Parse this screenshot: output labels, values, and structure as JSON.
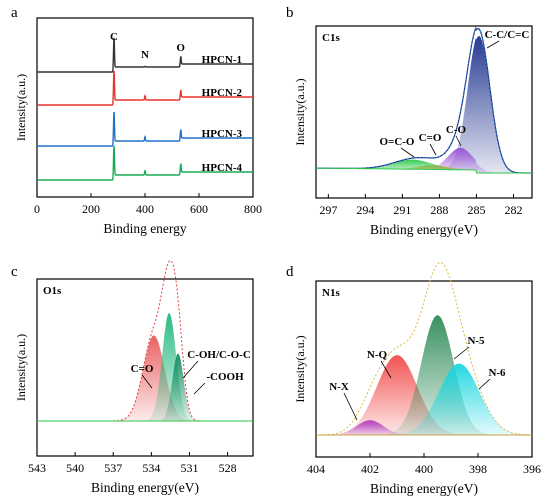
{
  "chart_data": [
    {
      "panel": "a",
      "type": "line",
      "xlabel": "Binding energy",
      "ylabel": "Intensity(a.u.)",
      "xlim": [
        0,
        800
      ],
      "xticks": [
        "0",
        "200",
        "400",
        "600",
        "800"
      ],
      "peak_labels": [
        {
          "text": "C",
          "x": 285
        },
        {
          "text": "N",
          "x": 400
        },
        {
          "text": "O",
          "x": 532
        }
      ],
      "series": [
        {
          "name": "HPCN-1",
          "color": "#333333",
          "peaks": {
            "C": 1.0,
            "N": 0.05,
            "O": 0.55
          }
        },
        {
          "name": "HPCN-2",
          "color": "#e8322d",
          "peaks": {
            "C": 1.0,
            "N": 0.35,
            "O": 0.5
          }
        },
        {
          "name": "HPCN-3",
          "color": "#1f72c9",
          "peaks": {
            "C": 1.0,
            "N": 0.35,
            "O": 0.6
          }
        },
        {
          "name": "HPCN-4",
          "color": "#1aaa55",
          "peaks": {
            "C": 1.0,
            "N": 0.35,
            "O": 0.6
          }
        }
      ]
    },
    {
      "panel": "b",
      "type": "area",
      "title": "C1s",
      "xlabel": "Binding energy(eV)",
      "ylabel": "Intensity(a.u.)",
      "xlim": [
        298,
        280.5
      ],
      "reversed_x": true,
      "xticks": [
        "297",
        "294",
        "291",
        "288",
        "285",
        "282"
      ],
      "components": [
        {
          "name": "C-C/C=C",
          "center": 284.8,
          "height": 1.0,
          "width": 0.9,
          "color": "#1c2f8c"
        },
        {
          "name": "C-O",
          "center": 286.3,
          "height": 0.16,
          "width": 1.0,
          "color": "#9a4fd6"
        },
        {
          "name": "C=O",
          "center": 288.5,
          "height": 0.03,
          "width": 1.2,
          "color": "#e89a3c"
        },
        {
          "name": "O=C-O",
          "center": 290.2,
          "height": 0.07,
          "width": 1.6,
          "color": "#2ec94a"
        }
      ]
    },
    {
      "panel": "c",
      "type": "area",
      "title": "O1s",
      "xlabel": "Binding energy(eV)",
      "ylabel": "Intensity(a.u.)",
      "xlim": [
        543,
        526
      ],
      "reversed_x": true,
      "xticks": [
        "543",
        "540",
        "537",
        "534",
        "531",
        "528"
      ],
      "components": [
        {
          "name": "C=O",
          "center": 533.8,
          "height": 0.38,
          "width": 0.85,
          "color": "#e85a5a"
        },
        {
          "name": "C-OH/C-O-C",
          "center": 532.6,
          "height": 0.48,
          "width": 0.55,
          "color": "#1fb87a"
        },
        {
          "name": "-COOH",
          "center": 531.9,
          "height": 0.3,
          "width": 0.45,
          "color": "#0e8a5e"
        }
      ]
    },
    {
      "panel": "d",
      "type": "area",
      "title": "N1s",
      "xlabel": "Binding energy(eV)",
      "ylabel": "Intensity(a.u.)",
      "xlim": [
        404,
        396
      ],
      "reversed_x": true,
      "xticks": [
        "404",
        "402",
        "400",
        "398",
        "396"
      ],
      "components": [
        {
          "name": "N-X",
          "center": 402.0,
          "height": 0.07,
          "width": 0.5,
          "color": "#9a2de0"
        },
        {
          "name": "N-Q",
          "center": 401.0,
          "height": 0.38,
          "width": 0.75,
          "color": "#f24a4a"
        },
        {
          "name": "N-5",
          "center": 399.5,
          "height": 0.57,
          "width": 0.6,
          "color": "#2e8b57"
        },
        {
          "name": "N-6",
          "center": 398.7,
          "height": 0.34,
          "width": 0.75,
          "color": "#19d6e0"
        }
      ]
    }
  ]
}
